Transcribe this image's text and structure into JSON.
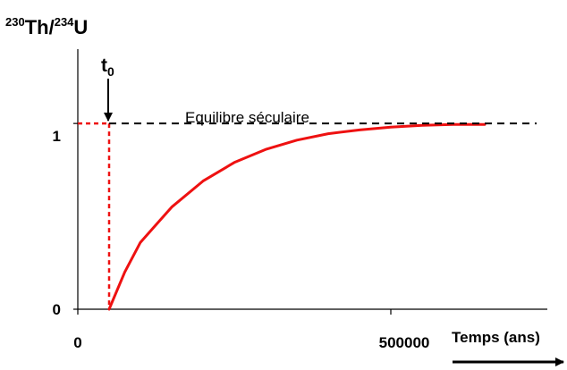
{
  "chart_data": {
    "type": "line",
    "title": "",
    "ylabel": {
      "iso1_mass": "230",
      "iso1": "Th",
      "sep": "/",
      "iso2_mass": "234",
      "iso2": "U"
    },
    "xlabel": "Temps (ans)",
    "x_ticks": [
      {
        "value": 0,
        "label": "0"
      },
      {
        "value": 500000,
        "label": "500000"
      }
    ],
    "y_ticks": [
      {
        "value": 0,
        "label": "0"
      },
      {
        "value": 1,
        "label": "1"
      }
    ],
    "xlim": [
      0,
      750000
    ],
    "ylim": [
      0,
      1.4
    ],
    "grid": false,
    "event": {
      "x": 50000,
      "label_main": "t",
      "label_sub": "0"
    },
    "reference_line": {
      "y": 1,
      "label": "Equilibre séculaire"
    },
    "series": [
      {
        "color": "#ee1111",
        "style": "solid",
        "x": [
          50000,
          75000,
          100000,
          150000,
          200000,
          250000,
          300000,
          350000,
          400000,
          450000,
          500000,
          550000,
          600000,
          650000
        ],
        "y": [
          0,
          0.2,
          0.36,
          0.55,
          0.69,
          0.79,
          0.86,
          0.91,
          0.945,
          0.965,
          0.98,
          0.99,
          0.995,
          0.995
        ]
      },
      {
        "color": "#ee1111",
        "style": "dashed",
        "x": [
          0,
          50000
        ],
        "y": [
          1,
          1
        ]
      },
      {
        "color": "#ee1111",
        "style": "dashed",
        "x": [
          50000,
          50000
        ],
        "y": [
          1,
          0
        ]
      }
    ]
  }
}
